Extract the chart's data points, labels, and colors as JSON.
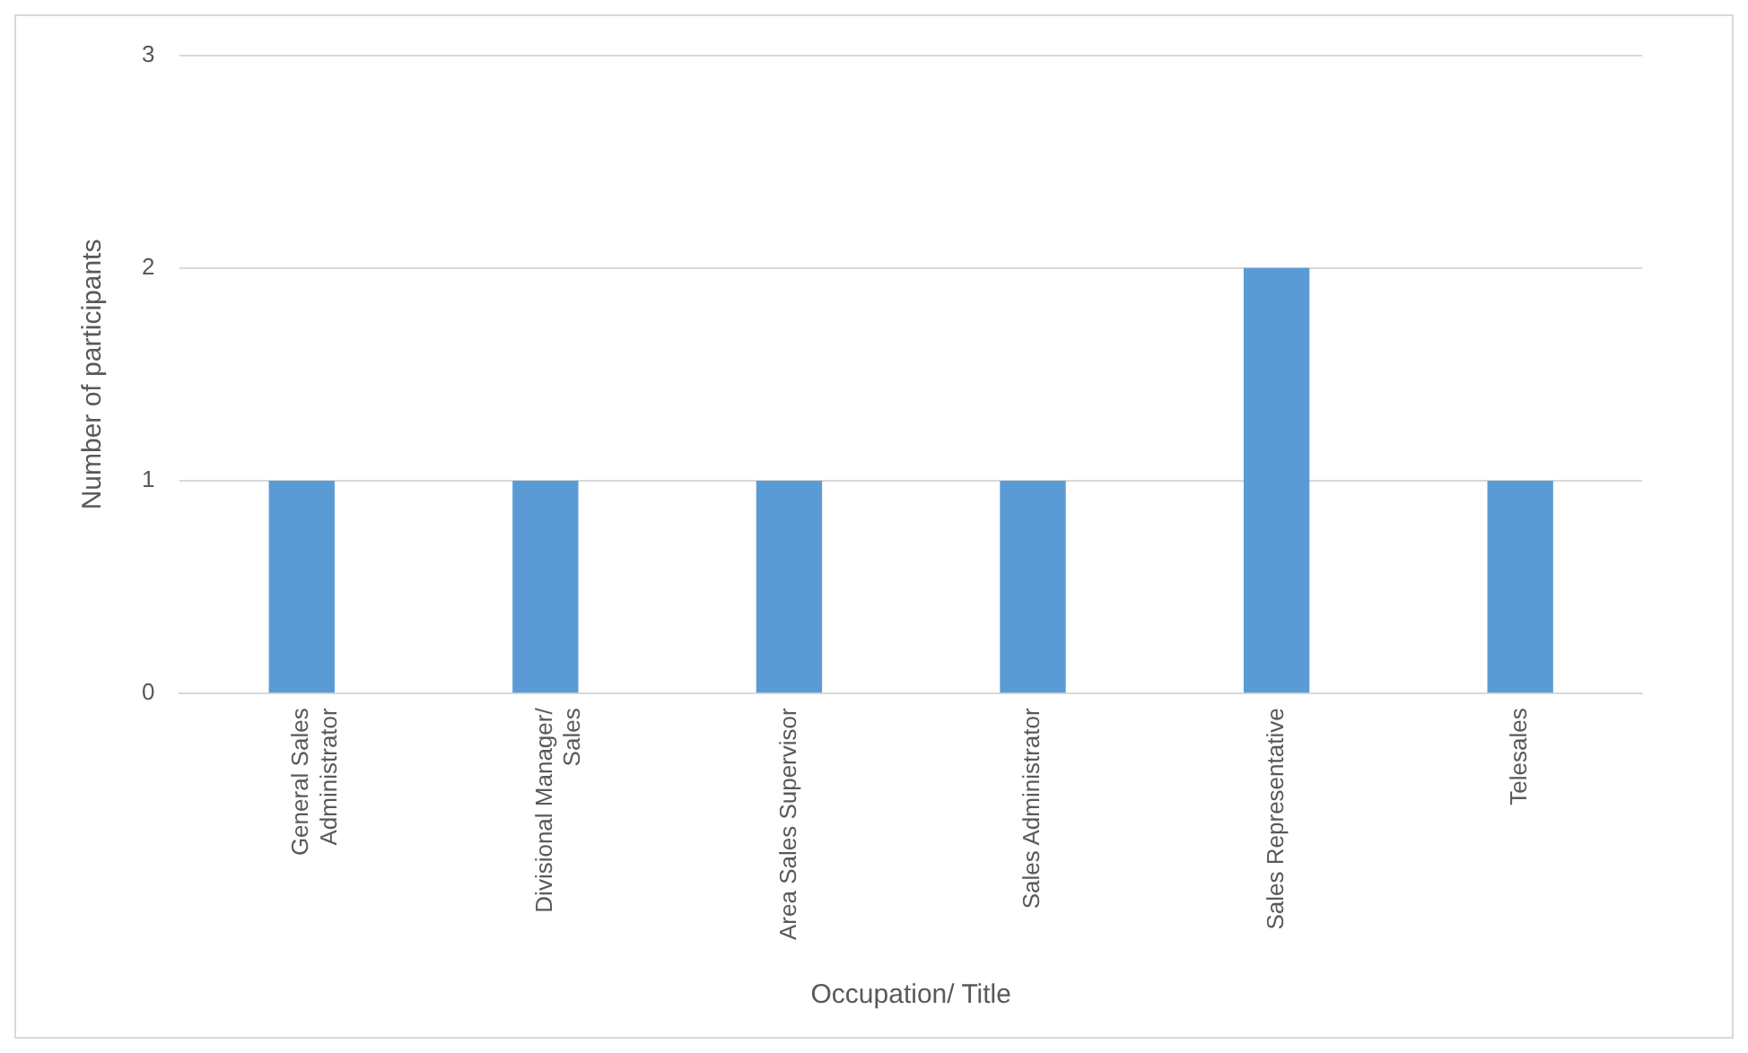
{
  "chart_data": {
    "type": "bar",
    "xlabel": "Occupation/ Title",
    "ylabel": "Number of participants",
    "categories": [
      "General Sales Administrator",
      "Divisional Manager/ Sales",
      "Area Sales Supervisor",
      "Sales Administrator",
      "Sales Representative",
      "Telesales"
    ],
    "values": [
      1,
      1,
      1,
      1,
      2,
      1
    ],
    "color": "#5b9bd5",
    "ylim": [
      0,
      3
    ],
    "yticks": [
      0,
      1,
      2,
      3
    ],
    "grid": "y",
    "legend": false
  }
}
